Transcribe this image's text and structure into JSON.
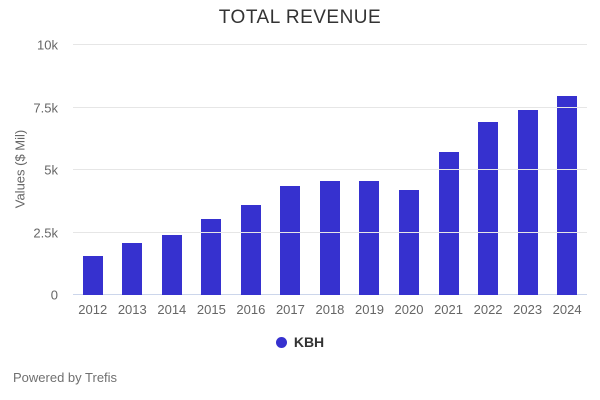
{
  "chart_data": {
    "type": "bar",
    "title": "TOTAL REVENUE",
    "categories": [
      "2012",
      "2013",
      "2014",
      "2015",
      "2016",
      "2017",
      "2018",
      "2019",
      "2020",
      "2021",
      "2022",
      "2023",
      "2024"
    ],
    "series": [
      {
        "name": "KBH",
        "values": [
          1560,
          2097,
          2401,
          3032,
          3595,
          4369,
          4547,
          4553,
          4183,
          5725,
          6904,
          7400,
          7950
        ]
      }
    ],
    "xlabel": "",
    "ylabel": "Values ($ Mil)",
    "ylim": [
      0,
      10000
    ],
    "yticks": [
      {
        "value": 0,
        "label": "0"
      },
      {
        "value": 2500,
        "label": "2.5k"
      },
      {
        "value": 5000,
        "label": "5k"
      },
      {
        "value": 7500,
        "label": "7.5k"
      },
      {
        "value": 10000,
        "label": "10k"
      }
    ],
    "grid": true,
    "legend_position": "bottom-center"
  },
  "legend": {
    "label": "KBH"
  },
  "footer": {
    "text": "Powered by Trefis"
  },
  "colors": {
    "bar": "#3631cf",
    "gridline": "#e6e6e6",
    "axis_line": "#ccd6eb",
    "tick_text": "#666666",
    "title_text": "#333333",
    "legend_text": "#333333",
    "footer_text": "#707070",
    "background": "#ffffff"
  }
}
